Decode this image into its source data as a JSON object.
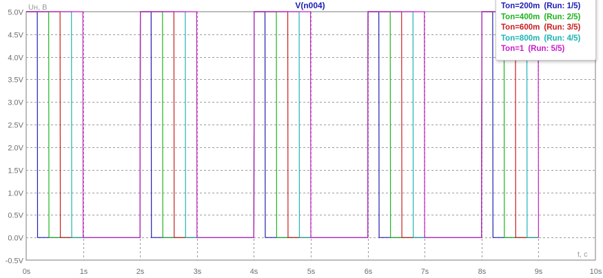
{
  "chart_data": {
    "type": "line",
    "title": "V(n004)",
    "xlabel": "t, c",
    "ylabel": "Uн, В",
    "xlim": [
      0,
      10
    ],
    "ylim": [
      -0.5,
      5.0
    ],
    "x_ticks": [
      "0s",
      "1s",
      "2s",
      "3s",
      "4s",
      "5s",
      "6s",
      "7s",
      "8s",
      "9s",
      "10s"
    ],
    "y_ticks": [
      "-0.5V",
      "0.0V",
      "0.5V",
      "1.0V",
      "1.5V",
      "2.0V",
      "2.5V",
      "3.0V",
      "3.5V",
      "4.0V",
      "4.5V",
      "5.0V"
    ],
    "grid": true,
    "legend_position": "top-right",
    "period": 2,
    "pulses": 5,
    "series": [
      {
        "label": "Ton=200m",
        "run": "(Run: 1/5)",
        "ton": 0.2,
        "color": "#1c1cb4"
      },
      {
        "label": "Ton=400m",
        "run": "(Run: 2/5)",
        "ton": 0.4,
        "color": "#1cb41c"
      },
      {
        "label": "Ton=600m",
        "run": "(Run: 3/5)",
        "ton": 0.6,
        "color": "#c81c1c"
      },
      {
        "label": "Ton=800m",
        "run": "(Run: 4/5)",
        "ton": 0.8,
        "color": "#1cb4b4"
      },
      {
        "label": "Ton=1",
        "run": "(Run: 5/5)",
        "ton": 1.0,
        "color": "#c81cc8"
      }
    ]
  }
}
